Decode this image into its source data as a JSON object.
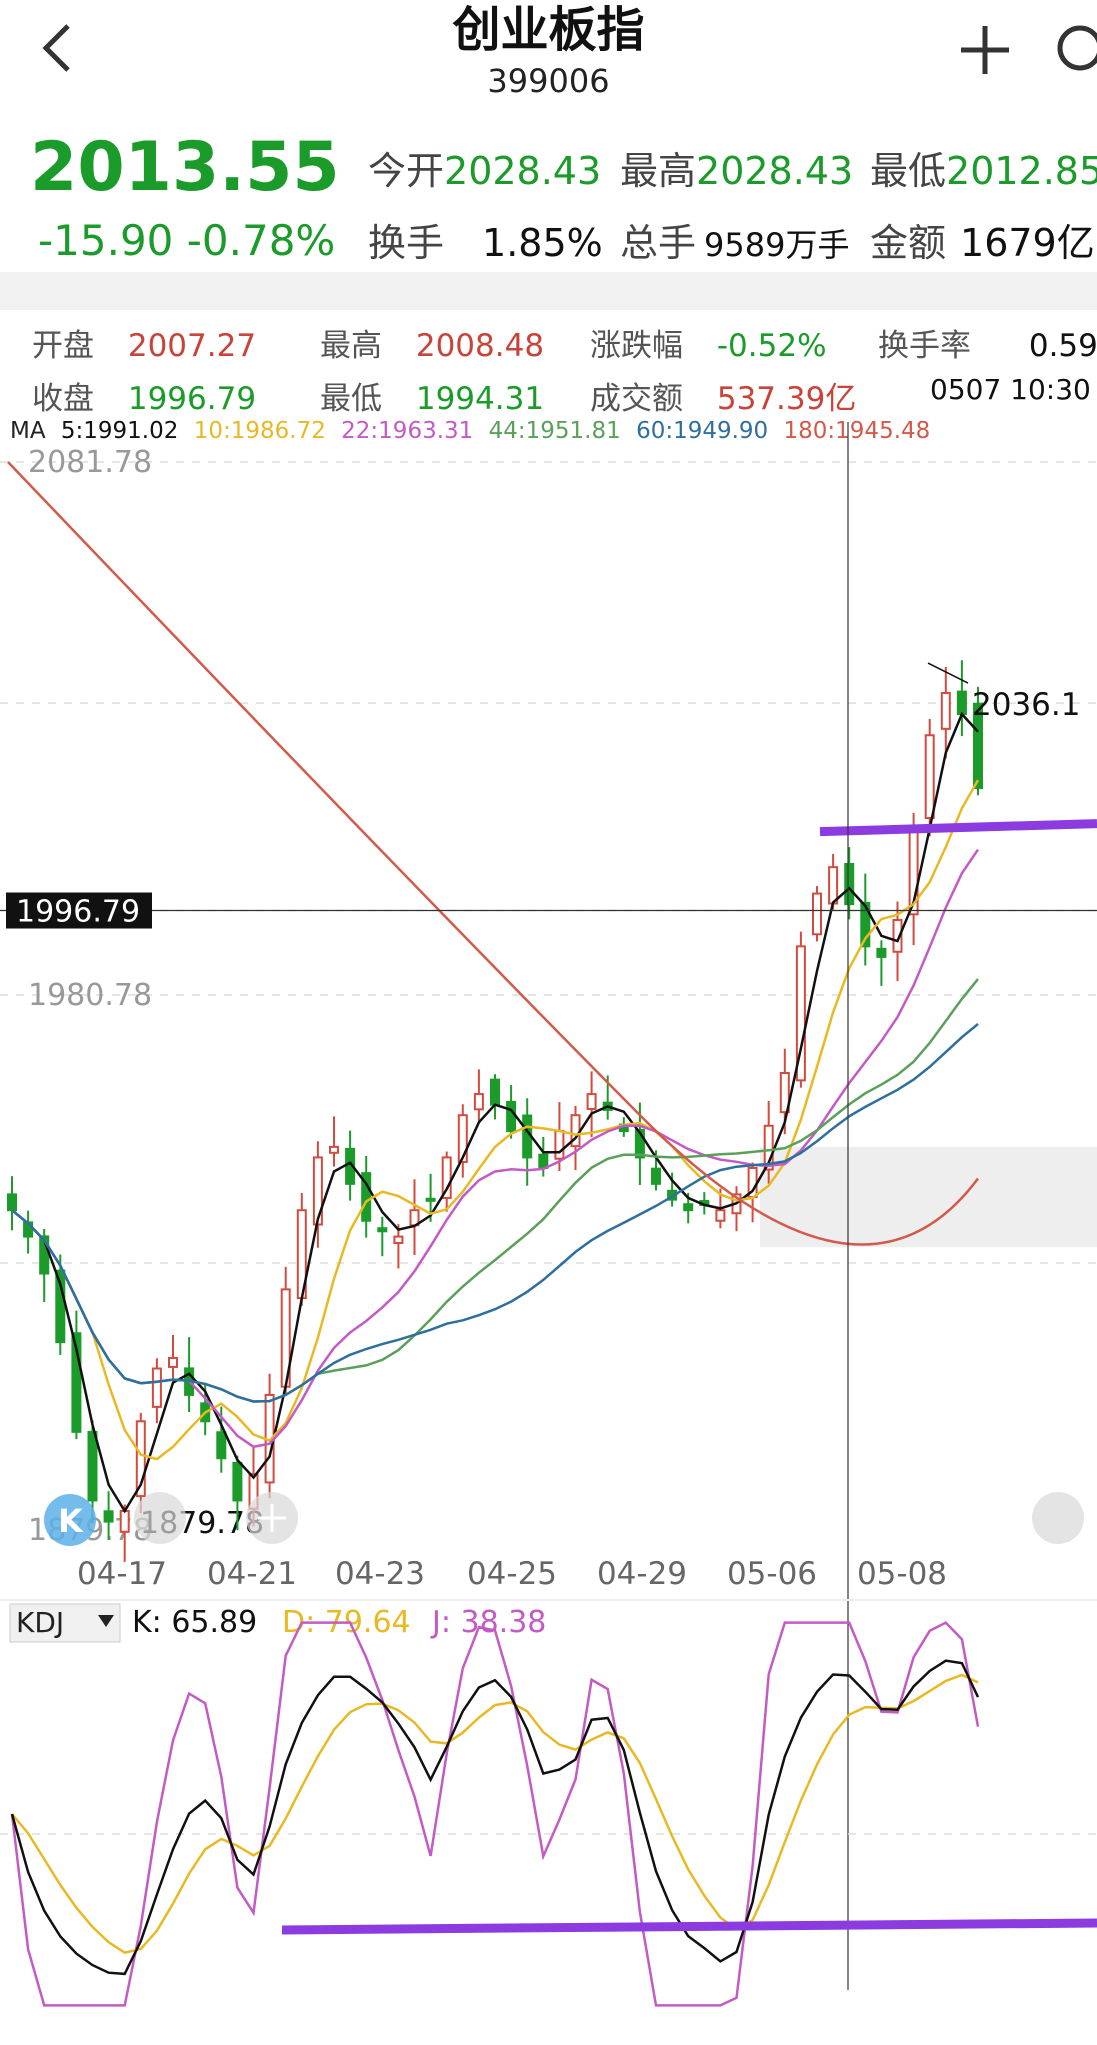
{
  "header": {
    "title": "创业板指",
    "code": "399006",
    "back_icon": "chevron-left-icon",
    "add_icon": "plus-icon",
    "search_icon": "search-icon"
  },
  "quote": {
    "price": "2013.55",
    "change": "-15.90",
    "change_pct": "-0.78%",
    "open_label": "今开",
    "open": "2028.43",
    "high_label": "最高",
    "high": "2028.43",
    "low_label": "最低",
    "low": "2012.85",
    "turnover_label": "换手",
    "turnover": "1.85%",
    "volume_label": "总手",
    "volume": "9589万手",
    "amount_label": "金额",
    "amount": "1679亿"
  },
  "bar_info": {
    "open_label": "开盘",
    "open": "2007.27",
    "high_label": "最高",
    "high": "2008.48",
    "pct_label": "涨跌幅",
    "pct": "-0.52%",
    "turnover_label": "换手率",
    "turnover": "0.59",
    "close_label": "收盘",
    "close": "1996.79",
    "low_label": "最低",
    "low": "1994.31",
    "amount_label": "成交额",
    "amount": "537.39亿",
    "time": "0507 10:30"
  },
  "ma_legend": {
    "prefix": "MA",
    "items": [
      {
        "text": "5:1991.02",
        "color": "#111111"
      },
      {
        "text": "10:1986.72",
        "color": "#e8b923"
      },
      {
        "text": "22:1963.31",
        "color": "#c45ac4"
      },
      {
        "text": "44:1951.81",
        "color": "#5aa05a"
      },
      {
        "text": "60:1949.90",
        "color": "#2e6fa0"
      },
      {
        "text": "180:1945.48",
        "color": "#d35a4a"
      }
    ]
  },
  "chart_data": [
    {
      "type": "candlestick",
      "price_labels": {
        "top": "2081.78",
        "mid": "1980.78",
        "bottom": "1879.78",
        "crosshair": "1996.79",
        "peak": "2036.1"
      },
      "x_ticks": [
        "04-17",
        "04-21",
        "04-23",
        "04-25",
        "04-29",
        "05-06",
        "05-08"
      ],
      "ylim": [
        1879.78,
        2081.78
      ],
      "crosshair_value": 1996.79,
      "peak_value": 2036.1,
      "support_value": 2012.5,
      "colors": {
        "up": "#d34a3e",
        "down": "#1b9b2a"
      },
      "close_path": [
        1940,
        1935,
        1928,
        1915,
        1898,
        1885,
        1881,
        1883,
        1900,
        1910,
        1912,
        1905,
        1900,
        1893,
        1885,
        1890,
        1905,
        1925,
        1940,
        1950,
        1952,
        1945,
        1938,
        1936,
        1935,
        1940,
        1942,
        1950,
        1958,
        1962,
        1960,
        1955,
        1950,
        1948,
        1955,
        1958,
        1962,
        1959,
        1955,
        1950,
        1945,
        1942,
        1940,
        1941,
        1940,
        1943,
        1948,
        1956,
        1966,
        1990,
        2000,
        2005,
        1998,
        1990,
        1988,
        1995,
        2012,
        2030,
        2038,
        2034,
        2020
      ]
    },
    {
      "type": "line",
      "title": "KDJ",
      "series": [
        {
          "name": "K",
          "value": "65.89",
          "color": "#111111"
        },
        {
          "name": "D",
          "value": "79.64",
          "color": "#e8b923"
        },
        {
          "name": "J",
          "value": "38.38",
          "color": "#c45ac4"
        }
      ],
      "ylim": [
        0,
        100
      ]
    }
  ]
}
